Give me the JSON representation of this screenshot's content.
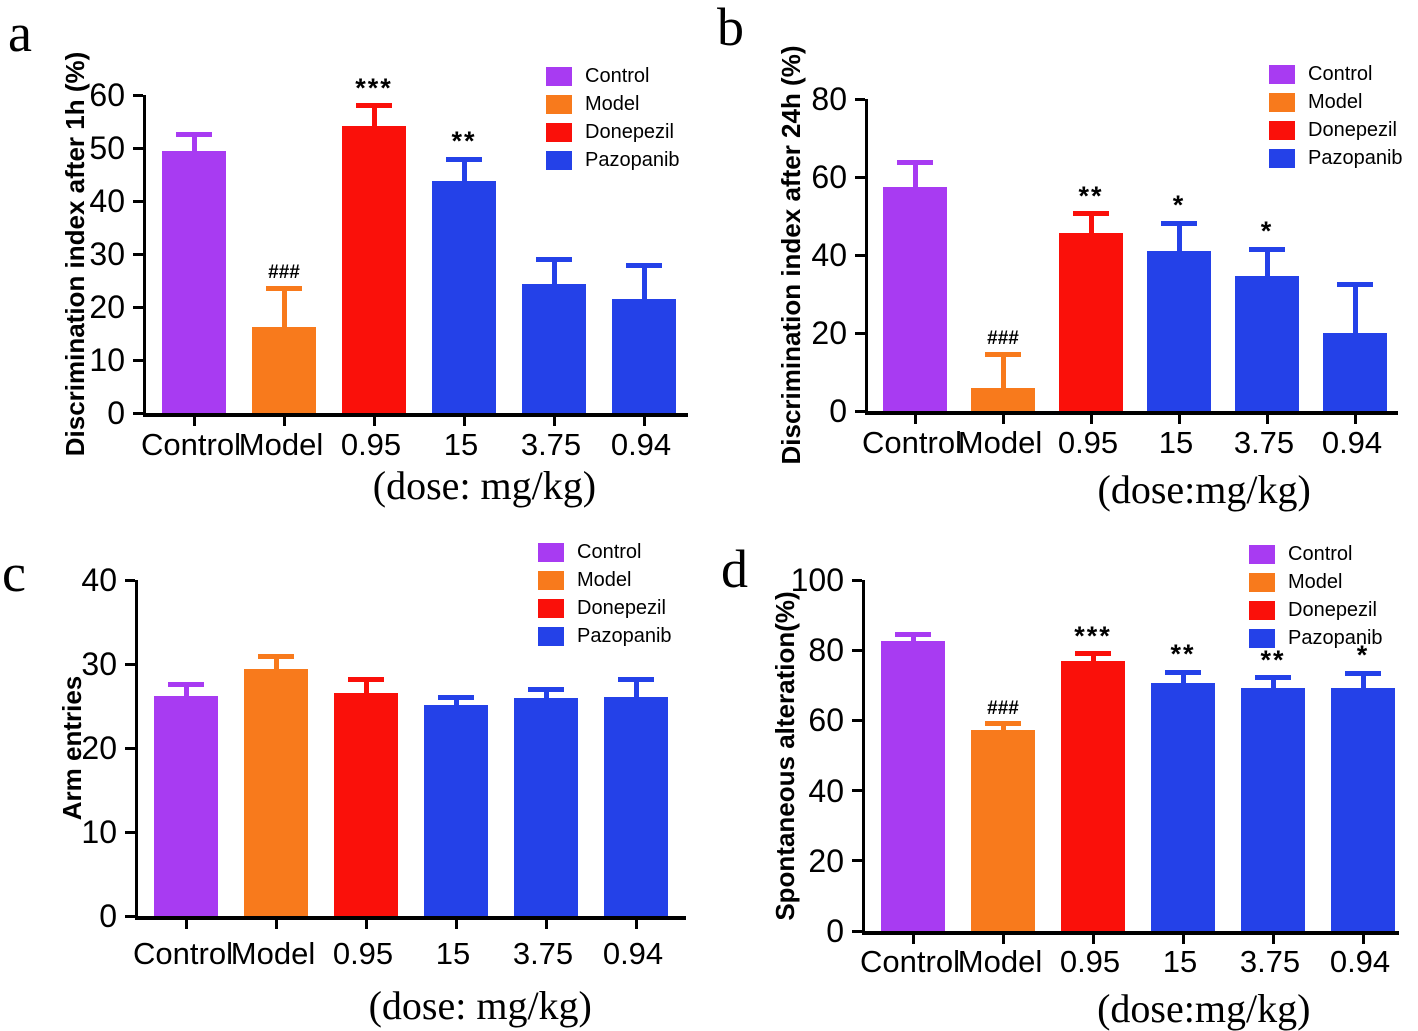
{
  "figure": {
    "background": "#ffffff",
    "colors": {
      "Control": "#a83bf2",
      "Model": "#f87a1c",
      "Donepezil": "#fa100a",
      "Pazopanib": "#2441e8",
      "axis": "#000000",
      "text": "#000000"
    },
    "legend": {
      "position": "top-right",
      "entries": [
        {
          "label": "Control",
          "color": "#a83bf2"
        },
        {
          "label": "Model",
          "color": "#f87a1c"
        },
        {
          "label": "Donepezil",
          "color": "#fa100a"
        },
        {
          "label": "Pazopanib",
          "color": "#2441e8"
        }
      ]
    }
  },
  "chart_data": [
    {
      "id": "a",
      "panel_letter": "a",
      "type": "bar",
      "ylabel": "Discrimination index after 1h (%)",
      "xlabel": "(dose: mg/kg)",
      "ylim": [
        0,
        60
      ],
      "yticks": [
        0,
        10,
        20,
        30,
        40,
        50,
        60
      ],
      "grid": false,
      "legend_position": "top-right",
      "categories": [
        "Control",
        "Model",
        "0.95",
        "15",
        "3.75",
        "0.94"
      ],
      "groups": [
        "Control",
        "Model",
        "Donepezil",
        "Pazopanib",
        "Pazopanib",
        "Pazopanib"
      ],
      "values": [
        49.5,
        16.2,
        54.2,
        43.7,
        24.4,
        21.6
      ],
      "errors": [
        3.0,
        7.3,
        3.8,
        4.2,
        4.5,
        6.3
      ],
      "significance": [
        "",
        "###",
        "***",
        "**",
        "",
        ""
      ]
    },
    {
      "id": "b",
      "panel_letter": "b",
      "type": "bar",
      "ylabel": "Discrimination index after 24h (%)",
      "xlabel": "(dose:mg/kg)",
      "ylim": [
        0,
        80
      ],
      "yticks": [
        0,
        20,
        40,
        60,
        80
      ],
      "grid": false,
      "legend_position": "top-right",
      "categories": [
        "Control",
        "Model",
        "0.95",
        "15",
        "3.75",
        "0.94"
      ],
      "groups": [
        "Control",
        "Model",
        "Donepezil",
        "Pazopanib",
        "Pazopanib",
        "Pazopanib"
      ],
      "values": [
        57.5,
        6.0,
        45.6,
        41.0,
        34.5,
        20.0
      ],
      "errors": [
        6.2,
        8.6,
        5.0,
        7.2,
        7.0,
        12.5
      ],
      "significance": [
        "",
        "###",
        "**",
        "*",
        "*",
        ""
      ]
    },
    {
      "id": "c",
      "panel_letter": "c",
      "type": "bar",
      "ylabel": "Arm entries",
      "xlabel": "(dose: mg/kg)",
      "ylim": [
        0,
        40
      ],
      "yticks": [
        0,
        10,
        20,
        30,
        40
      ],
      "grid": false,
      "legend_position": "top-right",
      "categories": [
        "Control",
        "Model",
        "0.95",
        "15",
        "3.75",
        "0.94"
      ],
      "groups": [
        "Control",
        "Model",
        "Donepezil",
        "Pazopanib",
        "Pazopanib",
        "Pazopanib"
      ],
      "values": [
        26.2,
        29.4,
        26.5,
        25.1,
        25.9,
        26.1
      ],
      "errors": [
        1.4,
        1.5,
        1.6,
        0.9,
        1.1,
        2.0
      ],
      "significance": [
        "",
        "",
        "",
        "",
        "",
        ""
      ]
    },
    {
      "id": "d",
      "panel_letter": "d",
      "type": "bar",
      "ylabel": "Spontaneous alteration(%)",
      "xlabel": "(dose:mg/kg)",
      "ylim": [
        0,
        100
      ],
      "yticks": [
        0,
        20,
        40,
        60,
        80,
        100
      ],
      "grid": false,
      "legend_position": "top-right",
      "categories": [
        "Control",
        "Model",
        "0.95",
        "15",
        "3.75",
        "0.94"
      ],
      "groups": [
        "Control",
        "Model",
        "Donepezil",
        "Pazopanib",
        "Pazopanib",
        "Pazopanib"
      ],
      "values": [
        82.5,
        57.2,
        77.0,
        70.8,
        69.2,
        69.2
      ],
      "errors": [
        2.0,
        1.8,
        2.0,
        2.9,
        2.9,
        4.2
      ],
      "significance": [
        "",
        "###",
        "***",
        "**",
        "**",
        "*"
      ]
    }
  ]
}
